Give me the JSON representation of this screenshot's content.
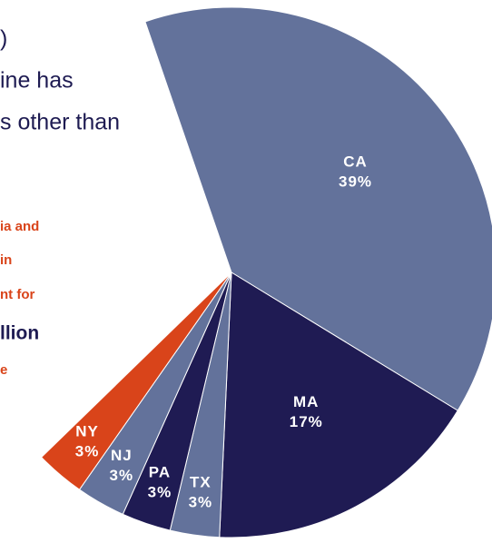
{
  "text_lines": [
    ")",
    "ine has",
    "s other than",
    "ia and",
    "in",
    "nt for",
    "llion",
    "e"
  ],
  "chart_data": {
    "type": "pie",
    "categories": [
      "CA",
      "MA",
      "TX",
      "PA",
      "NJ",
      "NY"
    ],
    "values": [
      39,
      17,
      3,
      3,
      3,
      3
    ],
    "value_labels": [
      "39%",
      "17%",
      "3%",
      "3%",
      "3%",
      "3%"
    ],
    "colors": [
      "#63729b",
      "#1f1b53",
      "#63729b",
      "#1f1b53",
      "#63729b",
      "#d9441a"
    ]
  }
}
